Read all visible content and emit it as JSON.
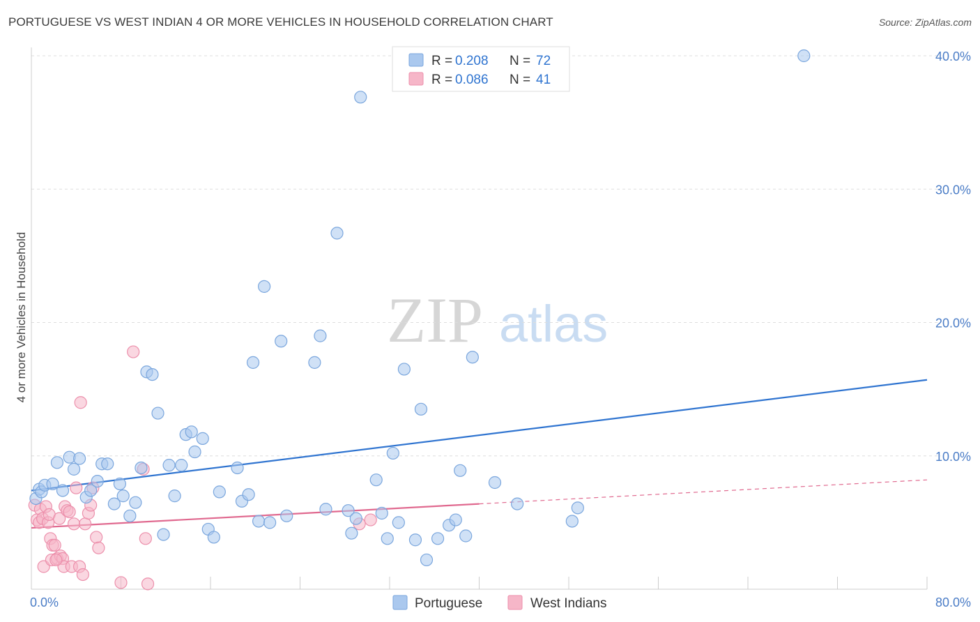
{
  "title": "PORTUGUESE VS WEST INDIAN 4 OR MORE VEHICLES IN HOUSEHOLD CORRELATION CHART",
  "source": "Source: ZipAtlas.com",
  "watermark": {
    "zip": "ZIP",
    "atlas": "atlas"
  },
  "colors": {
    "blue_fill": "#aac8ee",
    "blue_stroke": "#7aa6dd",
    "blue_line": "#2f74d0",
    "pink_fill": "#f6b6c8",
    "pink_stroke": "#ec8fab",
    "pink_line": "#e0698f",
    "grid": "#dddddd",
    "axis_text": "#4a7cc6"
  },
  "legend": {
    "r_label": "R =",
    "n_label": "N =",
    "items": [
      {
        "name": "Portuguese",
        "r": "0.208",
        "n": "72"
      },
      {
        "name": "West Indians",
        "r": "0.086",
        "n": "41"
      }
    ]
  },
  "chart_data": {
    "type": "scatter",
    "xlabel": "",
    "ylabel": "4 or more Vehicles in Household",
    "xlim": [
      0,
      80
    ],
    "ylim": [
      0,
      40
    ],
    "x_tick_labels": [
      "0.0%",
      "80.0%"
    ],
    "y_ticks": [
      10,
      20,
      30,
      40
    ],
    "y_tick_labels": [
      "10.0%",
      "20.0%",
      "30.0%",
      "40.0%"
    ],
    "series": [
      {
        "name": "Portuguese",
        "trend": {
          "x": [
            0,
            80
          ],
          "y": [
            7.4,
            15.7
          ]
        },
        "points": [
          [
            0.4,
            6.8
          ],
          [
            0.7,
            7.5
          ],
          [
            0.9,
            7.3
          ],
          [
            1.2,
            7.8
          ],
          [
            1.9,
            7.9
          ],
          [
            2.3,
            9.5
          ],
          [
            2.8,
            7.4
          ],
          [
            3.4,
            9.9
          ],
          [
            3.8,
            9.0
          ],
          [
            4.3,
            9.8
          ],
          [
            4.9,
            6.9
          ],
          [
            5.3,
            7.4
          ],
          [
            5.9,
            8.1
          ],
          [
            6.3,
            9.4
          ],
          [
            6.8,
            9.4
          ],
          [
            7.4,
            6.4
          ],
          [
            7.9,
            7.9
          ],
          [
            8.2,
            7.0
          ],
          [
            8.8,
            5.5
          ],
          [
            9.3,
            6.5
          ],
          [
            9.8,
            9.1
          ],
          [
            10.3,
            16.3
          ],
          [
            10.8,
            16.1
          ],
          [
            11.3,
            13.2
          ],
          [
            11.8,
            4.1
          ],
          [
            12.3,
            9.3
          ],
          [
            12.8,
            7.0
          ],
          [
            13.4,
            9.3
          ],
          [
            13.8,
            11.6
          ],
          [
            14.3,
            11.8
          ],
          [
            14.6,
            10.3
          ],
          [
            15.3,
            11.3
          ],
          [
            15.8,
            4.5
          ],
          [
            16.3,
            3.9
          ],
          [
            16.8,
            7.3
          ],
          [
            18.4,
            9.1
          ],
          [
            18.8,
            6.6
          ],
          [
            19.4,
            7.1
          ],
          [
            19.8,
            17.0
          ],
          [
            20.3,
            5.1
          ],
          [
            20.8,
            22.7
          ],
          [
            21.3,
            5.0
          ],
          [
            22.3,
            18.6
          ],
          [
            22.8,
            5.5
          ],
          [
            25.3,
            17.0
          ],
          [
            25.8,
            19.0
          ],
          [
            26.3,
            6.0
          ],
          [
            27.3,
            26.7
          ],
          [
            28.3,
            5.9
          ],
          [
            28.6,
            4.2
          ],
          [
            29.0,
            5.3
          ],
          [
            29.4,
            36.9
          ],
          [
            30.8,
            8.2
          ],
          [
            31.3,
            5.7
          ],
          [
            31.8,
            3.8
          ],
          [
            32.3,
            10.2
          ],
          [
            32.8,
            5.0
          ],
          [
            33.3,
            16.5
          ],
          [
            34.3,
            3.7
          ],
          [
            34.8,
            13.5
          ],
          [
            35.3,
            2.2
          ],
          [
            36.3,
            3.8
          ],
          [
            37.3,
            4.8
          ],
          [
            37.9,
            5.2
          ],
          [
            38.3,
            8.9
          ],
          [
            38.8,
            4.0
          ],
          [
            39.4,
            17.4
          ],
          [
            41.4,
            8.0
          ],
          [
            43.4,
            6.4
          ],
          [
            48.3,
            5.1
          ],
          [
            48.8,
            6.1
          ],
          [
            69.0,
            40.0
          ]
        ]
      },
      {
        "name": "West Indians",
        "trend": {
          "x": [
            0,
            40
          ],
          "y": [
            4.6,
            6.4
          ]
        },
        "trend_dashed": {
          "x": [
            40,
            80
          ],
          "y": [
            6.4,
            8.2
          ]
        },
        "points": [
          [
            0.3,
            6.3
          ],
          [
            0.5,
            5.2
          ],
          [
            0.7,
            5.0
          ],
          [
            0.8,
            6.0
          ],
          [
            1.0,
            5.3
          ],
          [
            1.1,
            1.7
          ],
          [
            1.3,
            6.2
          ],
          [
            1.5,
            5.0
          ],
          [
            1.6,
            5.6
          ],
          [
            1.7,
            3.8
          ],
          [
            1.8,
            2.2
          ],
          [
            1.9,
            3.3
          ],
          [
            2.1,
            3.3
          ],
          [
            2.3,
            2.3
          ],
          [
            2.5,
            5.3
          ],
          [
            2.6,
            2.5
          ],
          [
            2.8,
            2.3
          ],
          [
            2.9,
            1.7
          ],
          [
            3.0,
            6.2
          ],
          [
            3.2,
            5.9
          ],
          [
            3.4,
            5.8
          ],
          [
            3.6,
            1.7
          ],
          [
            3.8,
            4.9
          ],
          [
            4.0,
            7.6
          ],
          [
            4.3,
            1.7
          ],
          [
            4.4,
            14.0
          ],
          [
            4.6,
            1.1
          ],
          [
            4.8,
            4.9
          ],
          [
            5.1,
            5.7
          ],
          [
            5.3,
            6.3
          ],
          [
            5.5,
            7.6
          ],
          [
            5.8,
            3.9
          ],
          [
            6.0,
            3.1
          ],
          [
            8.0,
            0.5
          ],
          [
            9.1,
            17.8
          ],
          [
            10.0,
            9.0
          ],
          [
            10.2,
            3.8
          ],
          [
            10.4,
            0.4
          ],
          [
            29.3,
            4.9
          ],
          [
            30.3,
            5.2
          ],
          [
            2.2,
            2.2
          ]
        ]
      }
    ]
  }
}
